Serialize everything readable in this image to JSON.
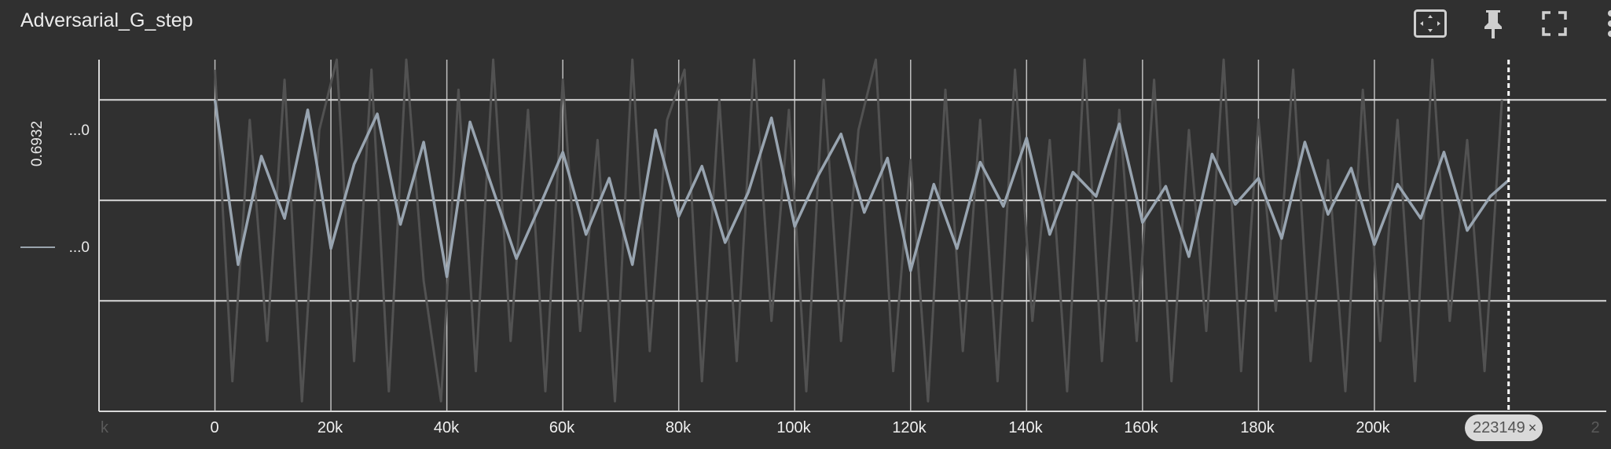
{
  "card": {
    "title": "Adversarial_G_step",
    "icons": [
      "fit-domain-icon",
      "pin-icon",
      "fullscreen-icon",
      "more-options-icon"
    ]
  },
  "axes": {
    "y_title": "0.6932",
    "y_ticks": [
      "...0",
      "...0"
    ],
    "x_ticks": [
      "0",
      "20k",
      "40k",
      "60k",
      "80k",
      "100k",
      "120k",
      "140k",
      "160k",
      "180k",
      "200k"
    ],
    "x_edge_left": "k",
    "x_edge_right": "2"
  },
  "cursor": {
    "step_label": "223149",
    "close_glyph": "×"
  },
  "colors": {
    "background": "#303030",
    "smoothed": "#98a4b0",
    "raw": "#525252",
    "grid": "#d8d8d8",
    "cursor_line": "#ffffff"
  },
  "chart_data": {
    "type": "line",
    "title": "Adversarial_G_step",
    "ylabel": "0.6932",
    "xlim": [
      -20000,
      240000
    ],
    "ylim": [
      -0.55,
      1.2
    ],
    "y_gridlines": [
      0.0,
      0.5,
      1.0
    ],
    "x_cursor": 223149,
    "grid": true,
    "series": [
      {
        "role": "smoothed",
        "x": [
          0,
          4000,
          8000,
          12000,
          16000,
          20000,
          24000,
          28000,
          32000,
          36000,
          40000,
          44000,
          48000,
          52000,
          56000,
          60000,
          64000,
          68000,
          72000,
          76000,
          80000,
          84000,
          88000,
          92000,
          96000,
          100000,
          104000,
          108000,
          112000,
          116000,
          120000,
          124000,
          128000,
          132000,
          136000,
          140000,
          144000,
          148000,
          152000,
          156000,
          160000,
          164000,
          168000,
          172000,
          176000,
          180000,
          184000,
          188000,
          192000,
          196000,
          200000,
          204000,
          208000,
          212000,
          216000,
          220000,
          223149
        ],
        "y": [
          1.0,
          0.18,
          0.72,
          0.41,
          0.95,
          0.26,
          0.68,
          0.93,
          0.38,
          0.79,
          0.12,
          0.89,
          0.55,
          0.21,
          0.47,
          0.74,
          0.33,
          0.61,
          0.18,
          0.85,
          0.42,
          0.67,
          0.29,
          0.54,
          0.91,
          0.37,
          0.62,
          0.83,
          0.44,
          0.71,
          0.15,
          0.58,
          0.26,
          0.69,
          0.47,
          0.81,
          0.33,
          0.64,
          0.52,
          0.88,
          0.39,
          0.57,
          0.22,
          0.73,
          0.48,
          0.61,
          0.31,
          0.79,
          0.43,
          0.66,
          0.28,
          0.58,
          0.41,
          0.74,
          0.35,
          0.52,
          0.6
        ]
      },
      {
        "role": "raw",
        "x": [
          0,
          3000,
          6000,
          9000,
          12000,
          15000,
          18000,
          21000,
          24000,
          27000,
          30000,
          33000,
          36000,
          39000,
          42000,
          45000,
          48000,
          51000,
          54000,
          57000,
          60000,
          63000,
          66000,
          69000,
          72000,
          75000,
          78000,
          81000,
          84000,
          87000,
          90000,
          93000,
          96000,
          99000,
          102000,
          105000,
          108000,
          111000,
          114000,
          117000,
          120000,
          123000,
          126000,
          129000,
          132000,
          135000,
          138000,
          141000,
          144000,
          147000,
          150000,
          153000,
          156000,
          159000,
          162000,
          165000,
          168000,
          171000,
          174000,
          177000,
          180000,
          183000,
          186000,
          189000,
          192000,
          195000,
          198000,
          201000,
          204000,
          207000,
          210000,
          213000,
          216000,
          219000,
          222000
        ],
        "y": [
          1.15,
          -0.4,
          0.9,
          -0.2,
          1.1,
          -0.5,
          0.85,
          1.2,
          -0.3,
          1.15,
          -0.45,
          1.2,
          0.1,
          -0.5,
          1.05,
          -0.35,
          1.2,
          -0.2,
          0.95,
          -0.45,
          1.1,
          -0.15,
          0.8,
          -0.5,
          1.2,
          -0.25,
          0.9,
          1.15,
          -0.4,
          1.0,
          -0.3,
          1.2,
          -0.1,
          0.95,
          -0.45,
          1.1,
          -0.2,
          0.85,
          1.2,
          -0.35,
          0.7,
          -0.5,
          1.05,
          -0.25,
          0.9,
          -0.4,
          1.15,
          -0.1,
          0.8,
          -0.45,
          1.2,
          -0.3,
          0.95,
          -0.2,
          1.1,
          -0.4,
          0.85,
          -0.15,
          1.2,
          -0.35,
          0.9,
          -0.05,
          1.15,
          -0.3,
          0.7,
          -0.45,
          1.05,
          -0.2,
          0.9,
          -0.4,
          1.2,
          -0.1,
          0.8,
          -0.35,
          1.0
        ]
      }
    ]
  }
}
